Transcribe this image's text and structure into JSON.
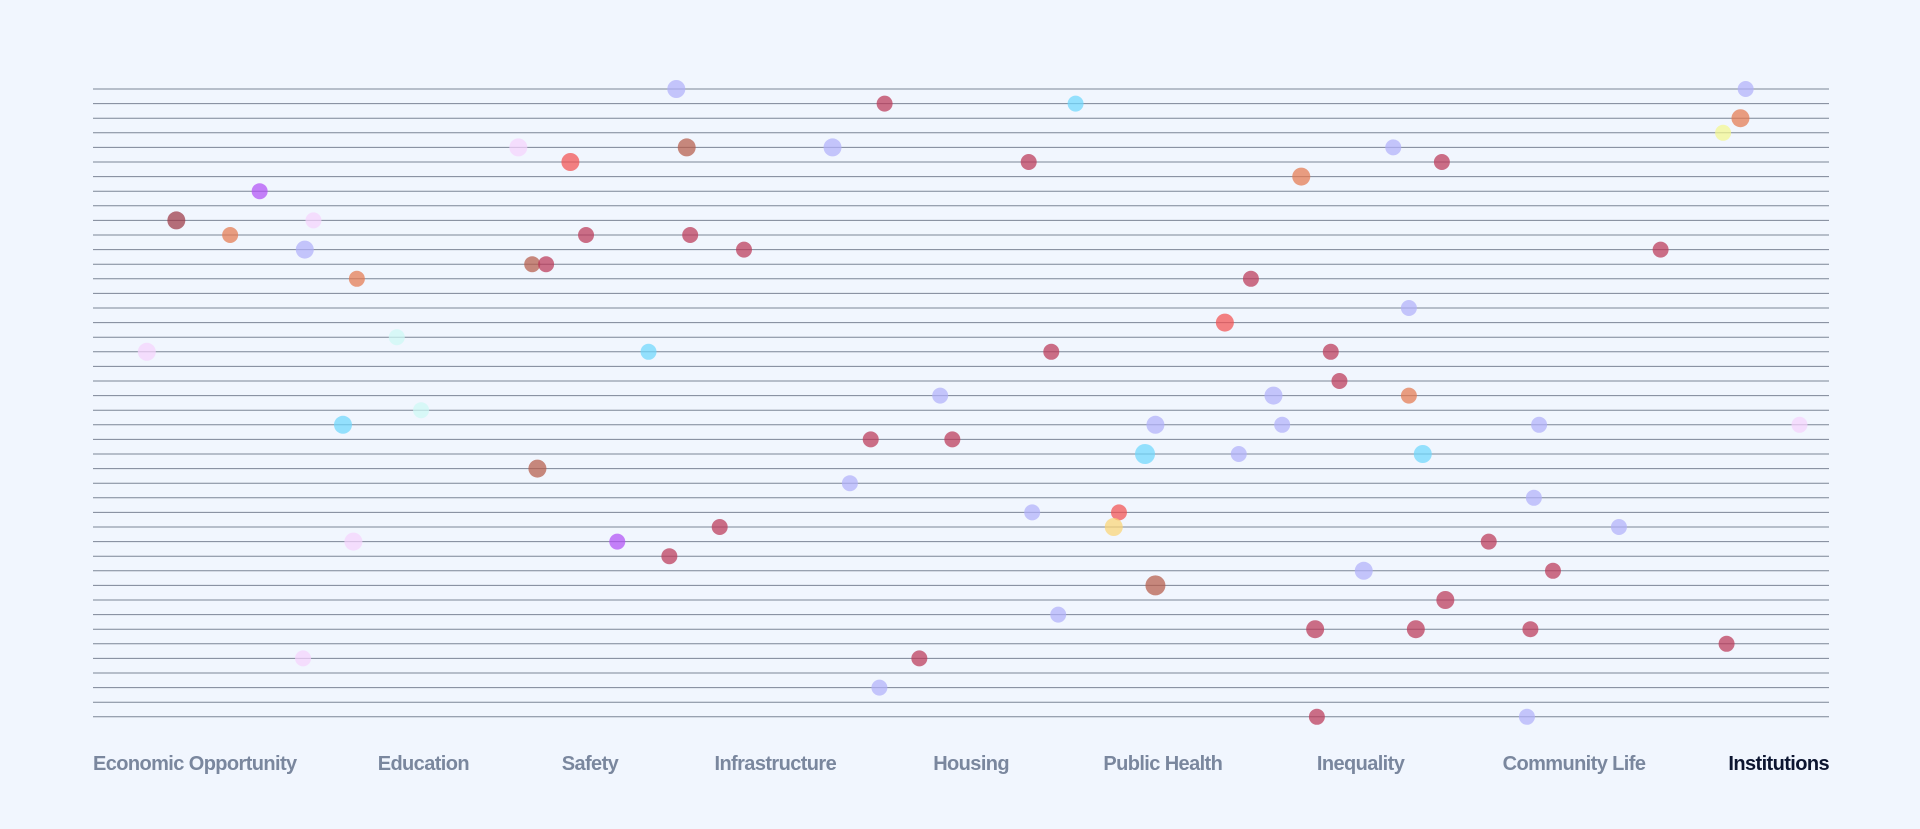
{
  "chart_data": {
    "type": "scatter",
    "title": "",
    "xlabel": "",
    "ylabel": "",
    "grid": true,
    "row_count": 44,
    "x_range": [
      0,
      100
    ],
    "categories": [
      {
        "label": "Economic Opportunity",
        "x": 0,
        "active": false
      },
      {
        "label": "Education",
        "x": 16.4,
        "active": false
      },
      {
        "label": "Safety",
        "x": 27.0,
        "active": false
      },
      {
        "label": "Infrastructure",
        "x": 35.8,
        "active": false
      },
      {
        "label": "Housing",
        "x": 48.4,
        "active": false
      },
      {
        "label": "Public Health",
        "x": 58.2,
        "active": false
      },
      {
        "label": "Inequality",
        "x": 70.5,
        "active": false
      },
      {
        "label": "Community Life",
        "x": 81.2,
        "active": false
      },
      {
        "label": "Institutions",
        "x": 94.5,
        "active": true
      }
    ],
    "palette": {
      "lavender": "#b2b0fa",
      "crimson": "#bb3758",
      "cyan": "#6fd7fc",
      "orange": "#e4794f",
      "brown": "#b55b4a",
      "red": "#f35050",
      "pink": "#f5d2fc",
      "purple": "#b150f5",
      "mint": "#cdf8f4",
      "yellow": "#f4f78f",
      "gold": "#fbd474",
      "darkred": "#9c3745"
    },
    "points": [
      {
        "x": 33.6,
        "row": 0,
        "color": "lavender",
        "r": 9
      },
      {
        "x": 95.2,
        "row": 0,
        "color": "lavender",
        "r": 8
      },
      {
        "x": 45.6,
        "row": 1,
        "color": "crimson",
        "r": 8
      },
      {
        "x": 56.6,
        "row": 1,
        "color": "cyan",
        "r": 8
      },
      {
        "x": 94.9,
        "row": 2,
        "color": "orange",
        "r": 9
      },
      {
        "x": 93.9,
        "row": 3,
        "color": "yellow",
        "r": 8
      },
      {
        "x": 24.5,
        "row": 4,
        "color": "pink",
        "r": 9
      },
      {
        "x": 34.2,
        "row": 4,
        "color": "brown",
        "r": 9
      },
      {
        "x": 42.6,
        "row": 4,
        "color": "lavender",
        "r": 9
      },
      {
        "x": 74.9,
        "row": 4,
        "color": "lavender",
        "r": 8
      },
      {
        "x": 27.5,
        "row": 5,
        "color": "red",
        "r": 9
      },
      {
        "x": 53.9,
        "row": 5,
        "color": "crimson",
        "r": 8
      },
      {
        "x": 77.7,
        "row": 5,
        "color": "crimson",
        "r": 8
      },
      {
        "x": 69.6,
        "row": 6,
        "color": "orange",
        "r": 9
      },
      {
        "x": 9.6,
        "row": 7,
        "color": "purple",
        "r": 8
      },
      {
        "x": 4.8,
        "row": 9,
        "color": "darkred",
        "r": 9
      },
      {
        "x": 12.7,
        "row": 9,
        "color": "pink",
        "r": 8
      },
      {
        "x": 7.9,
        "row": 10,
        "color": "orange",
        "r": 8
      },
      {
        "x": 28.4,
        "row": 10,
        "color": "crimson",
        "r": 8
      },
      {
        "x": 34.4,
        "row": 10,
        "color": "crimson",
        "r": 8
      },
      {
        "x": 12.2,
        "row": 11,
        "color": "lavender",
        "r": 9
      },
      {
        "x": 37.5,
        "row": 11,
        "color": "crimson",
        "r": 8
      },
      {
        "x": 90.3,
        "row": 11,
        "color": "crimson",
        "r": 8
      },
      {
        "x": 25.3,
        "row": 12,
        "color": "brown",
        "r": 8
      },
      {
        "x": 26.1,
        "row": 12,
        "color": "crimson",
        "r": 8
      },
      {
        "x": 15.2,
        "row": 13,
        "color": "orange",
        "r": 8
      },
      {
        "x": 66.7,
        "row": 13,
        "color": "crimson",
        "r": 8
      },
      {
        "x": 75.8,
        "row": 15,
        "color": "lavender",
        "r": 8
      },
      {
        "x": 65.2,
        "row": 16,
        "color": "red",
        "r": 9
      },
      {
        "x": 17.5,
        "row": 17,
        "color": "mint",
        "r": 8
      },
      {
        "x": 3.1,
        "row": 18,
        "color": "pink",
        "r": 9
      },
      {
        "x": 32.0,
        "row": 18,
        "color": "cyan",
        "r": 8
      },
      {
        "x": 55.2,
        "row": 18,
        "color": "crimson",
        "r": 8
      },
      {
        "x": 71.3,
        "row": 18,
        "color": "crimson",
        "r": 8
      },
      {
        "x": 71.8,
        "row": 20,
        "color": "crimson",
        "r": 8
      },
      {
        "x": 48.8,
        "row": 21,
        "color": "lavender",
        "r": 8
      },
      {
        "x": 68.0,
        "row": 21,
        "color": "lavender",
        "r": 9
      },
      {
        "x": 75.8,
        "row": 21,
        "color": "orange",
        "r": 8
      },
      {
        "x": 18.9,
        "row": 22,
        "color": "mint",
        "r": 8
      },
      {
        "x": 14.4,
        "row": 23,
        "color": "cyan",
        "r": 9
      },
      {
        "x": 61.2,
        "row": 23,
        "color": "lavender",
        "r": 9
      },
      {
        "x": 68.5,
        "row": 23,
        "color": "lavender",
        "r": 8
      },
      {
        "x": 83.3,
        "row": 23,
        "color": "lavender",
        "r": 8
      },
      {
        "x": 98.3,
        "row": 23,
        "color": "pink",
        "r": 8
      },
      {
        "x": 44.8,
        "row": 24,
        "color": "crimson",
        "r": 8
      },
      {
        "x": 49.5,
        "row": 24,
        "color": "crimson",
        "r": 8
      },
      {
        "x": 60.6,
        "row": 25,
        "color": "cyan",
        "r": 10
      },
      {
        "x": 66.0,
        "row": 25,
        "color": "lavender",
        "r": 8
      },
      {
        "x": 76.6,
        "row": 25,
        "color": "cyan",
        "r": 9
      },
      {
        "x": 25.6,
        "row": 26,
        "color": "brown",
        "r": 9
      },
      {
        "x": 43.6,
        "row": 27,
        "color": "lavender",
        "r": 8
      },
      {
        "x": 83.0,
        "row": 28,
        "color": "lavender",
        "r": 8
      },
      {
        "x": 54.1,
        "row": 29,
        "color": "lavender",
        "r": 8
      },
      {
        "x": 59.1,
        "row": 29,
        "color": "red",
        "r": 8
      },
      {
        "x": 36.1,
        "row": 30,
        "color": "crimson",
        "r": 8
      },
      {
        "x": 58.8,
        "row": 30,
        "color": "gold",
        "r": 9
      },
      {
        "x": 87.9,
        "row": 30,
        "color": "lavender",
        "r": 8
      },
      {
        "x": 15.0,
        "row": 31,
        "color": "pink",
        "r": 9
      },
      {
        "x": 30.2,
        "row": 31,
        "color": "purple",
        "r": 8
      },
      {
        "x": 80.4,
        "row": 31,
        "color": "crimson",
        "r": 8
      },
      {
        "x": 33.2,
        "row": 32,
        "color": "crimson",
        "r": 8
      },
      {
        "x": 73.2,
        "row": 33,
        "color": "lavender",
        "r": 9
      },
      {
        "x": 84.1,
        "row": 33,
        "color": "crimson",
        "r": 8
      },
      {
        "x": 61.2,
        "row": 34,
        "color": "brown",
        "r": 10
      },
      {
        "x": 77.9,
        "row": 35,
        "color": "crimson",
        "r": 9
      },
      {
        "x": 55.6,
        "row": 36,
        "color": "lavender",
        "r": 8
      },
      {
        "x": 70.4,
        "row": 37,
        "color": "crimson",
        "r": 9
      },
      {
        "x": 76.2,
        "row": 37,
        "color": "crimson",
        "r": 9
      },
      {
        "x": 82.8,
        "row": 37,
        "color": "crimson",
        "r": 8
      },
      {
        "x": 94.1,
        "row": 38,
        "color": "crimson",
        "r": 8
      },
      {
        "x": 12.1,
        "row": 39,
        "color": "pink",
        "r": 8
      },
      {
        "x": 47.6,
        "row": 39,
        "color": "crimson",
        "r": 8
      },
      {
        "x": 45.3,
        "row": 41,
        "color": "lavender",
        "r": 8
      },
      {
        "x": 70.5,
        "row": 43,
        "color": "crimson",
        "r": 8
      },
      {
        "x": 82.6,
        "row": 43,
        "color": "lavender",
        "r": 8
      }
    ]
  }
}
